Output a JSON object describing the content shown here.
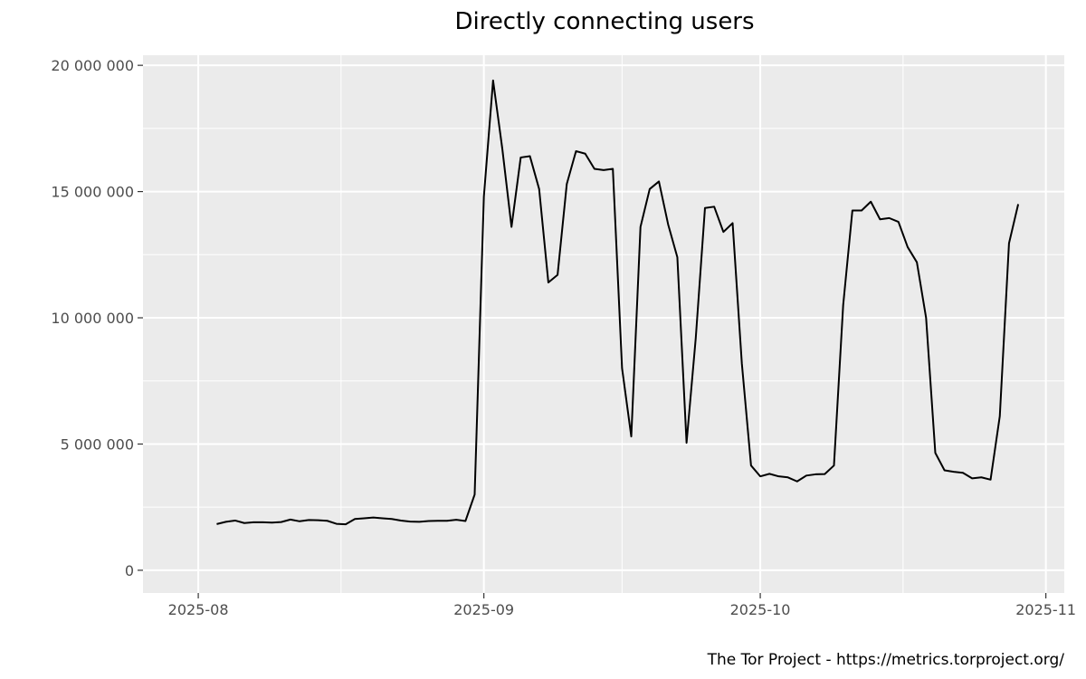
{
  "chart_data": {
    "type": "line",
    "title": "Directly connecting users",
    "xlabel": "",
    "ylabel": "",
    "caption": "The Tor Project - https://metrics.torproject.org/",
    "x_ticks": [
      "2025-08",
      "2025-09",
      "2025-10",
      "2025-11"
    ],
    "y_ticks": [
      0,
      5000000,
      10000000,
      15000000,
      20000000
    ],
    "y_tick_labels": [
      "0",
      "5 000 000",
      "10 000 000",
      "15 000 000",
      "20 000 000"
    ],
    "xlim": [
      "2025-07-26",
      "2025-11-03"
    ],
    "ylim": [
      -900000,
      20400000
    ],
    "grid": true,
    "colors": {
      "panel": "#ebebeb",
      "grid": "#ffffff",
      "line": "#000000",
      "tick_text": "#4d4d4d"
    },
    "series": [
      {
        "x": [
          "2025-08-03",
          "2025-08-04",
          "2025-08-05",
          "2025-08-06",
          "2025-08-07",
          "2025-08-08",
          "2025-08-09",
          "2025-08-10",
          "2025-08-11",
          "2025-08-12",
          "2025-08-13",
          "2025-08-14",
          "2025-08-15",
          "2025-08-16",
          "2025-08-17",
          "2025-08-18",
          "2025-08-19",
          "2025-08-20",
          "2025-08-21",
          "2025-08-22",
          "2025-08-23",
          "2025-08-24",
          "2025-08-25",
          "2025-08-26",
          "2025-08-27",
          "2025-08-28",
          "2025-08-29",
          "2025-08-30",
          "2025-08-31",
          "2025-09-01",
          "2025-09-02",
          "2025-09-03",
          "2025-09-04",
          "2025-09-05",
          "2025-09-06",
          "2025-09-07",
          "2025-09-08",
          "2025-09-09",
          "2025-09-10",
          "2025-09-11",
          "2025-09-12",
          "2025-09-13",
          "2025-09-14",
          "2025-09-15",
          "2025-09-16",
          "2025-09-17",
          "2025-09-18",
          "2025-09-19",
          "2025-09-20",
          "2025-09-21",
          "2025-09-22",
          "2025-09-23",
          "2025-09-24",
          "2025-09-25",
          "2025-09-26",
          "2025-09-27",
          "2025-09-28",
          "2025-09-29",
          "2025-09-30",
          "2025-10-01",
          "2025-10-02",
          "2025-10-03",
          "2025-10-04",
          "2025-10-05",
          "2025-10-06",
          "2025-10-07",
          "2025-10-08",
          "2025-10-09",
          "2025-10-10",
          "2025-10-11",
          "2025-10-12",
          "2025-10-13",
          "2025-10-14",
          "2025-10-15",
          "2025-10-16",
          "2025-10-17",
          "2025-10-18",
          "2025-10-19",
          "2025-10-20",
          "2025-10-21",
          "2025-10-22",
          "2025-10-23",
          "2025-10-24",
          "2025-10-25",
          "2025-10-26",
          "2025-10-27",
          "2025-10-28",
          "2025-10-29"
        ],
        "values": [
          1830000,
          1920000,
          1970000,
          1870000,
          1900000,
          1900000,
          1890000,
          1910000,
          2010000,
          1940000,
          1990000,
          1980000,
          1960000,
          1840000,
          1820000,
          2030000,
          2060000,
          2090000,
          2060000,
          2030000,
          1970000,
          1930000,
          1920000,
          1950000,
          1960000,
          1960000,
          2000000,
          1950000,
          3000000,
          14800000,
          19400000,
          16700000,
          13600000,
          16350000,
          16400000,
          15100000,
          11400000,
          11700000,
          15300000,
          16600000,
          16500000,
          15900000,
          15850000,
          15900000,
          8000000,
          5300000,
          13600000,
          15100000,
          15400000,
          13700000,
          12400000,
          5050000,
          9200000,
          14350000,
          14400000,
          13400000,
          13750000,
          8200000,
          4150000,
          3720000,
          3820000,
          3720000,
          3680000,
          3520000,
          3750000,
          3800000,
          3810000,
          4150000,
          10500000,
          14250000,
          14250000,
          14600000,
          13900000,
          13950000,
          13800000,
          12800000,
          12200000,
          10000000,
          4650000,
          3960000,
          3900000,
          3860000,
          3640000,
          3680000,
          3590000,
          6100000,
          12950000,
          14500000
        ]
      }
    ]
  }
}
